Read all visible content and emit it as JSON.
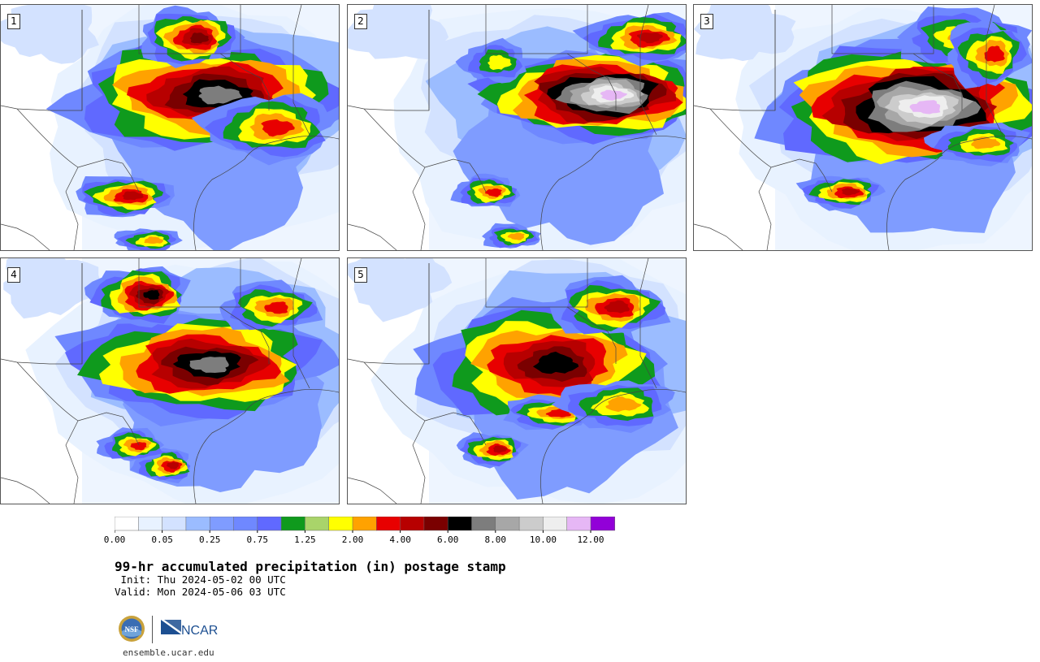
{
  "panels": [
    {
      "id": "1",
      "label": "1"
    },
    {
      "id": "2",
      "label": "2"
    },
    {
      "id": "3",
      "label": "3"
    },
    {
      "id": "4",
      "label": "4"
    },
    {
      "id": "5",
      "label": "5"
    }
  ],
  "colorbar": {
    "colors": [
      "#ffffff",
      "#e8f2ff",
      "#d3e2ff",
      "#9bbcff",
      "#7f9cff",
      "#6f88ff",
      "#6069ff",
      "#0f9a1d",
      "#a9d46a",
      "#ffff00",
      "#ffa200",
      "#e80000",
      "#b70000",
      "#7a0000",
      "#000000",
      "#7d7d7d",
      "#a7a7a7",
      "#cccccc",
      "#eeeeee",
      "#e6b7f5",
      "#9200d8"
    ],
    "tick_labels": [
      "0.00",
      "0.05",
      "0.25",
      "0.75",
      "1.25",
      "2.00",
      "4.00",
      "6.00",
      "8.00",
      "10.00",
      "12.00"
    ]
  },
  "title": "99-hr accumulated precipitation (in) postage stamp",
  "init_text": " Init: Thu 2024-05-02 00 UTC",
  "valid_text": "Valid: Mon 2024-05-06 03 UTC",
  "logos": {
    "nsf": "NSF",
    "ncar": "NCAR"
  },
  "footer_url": "ensemble.ucar.edu"
}
